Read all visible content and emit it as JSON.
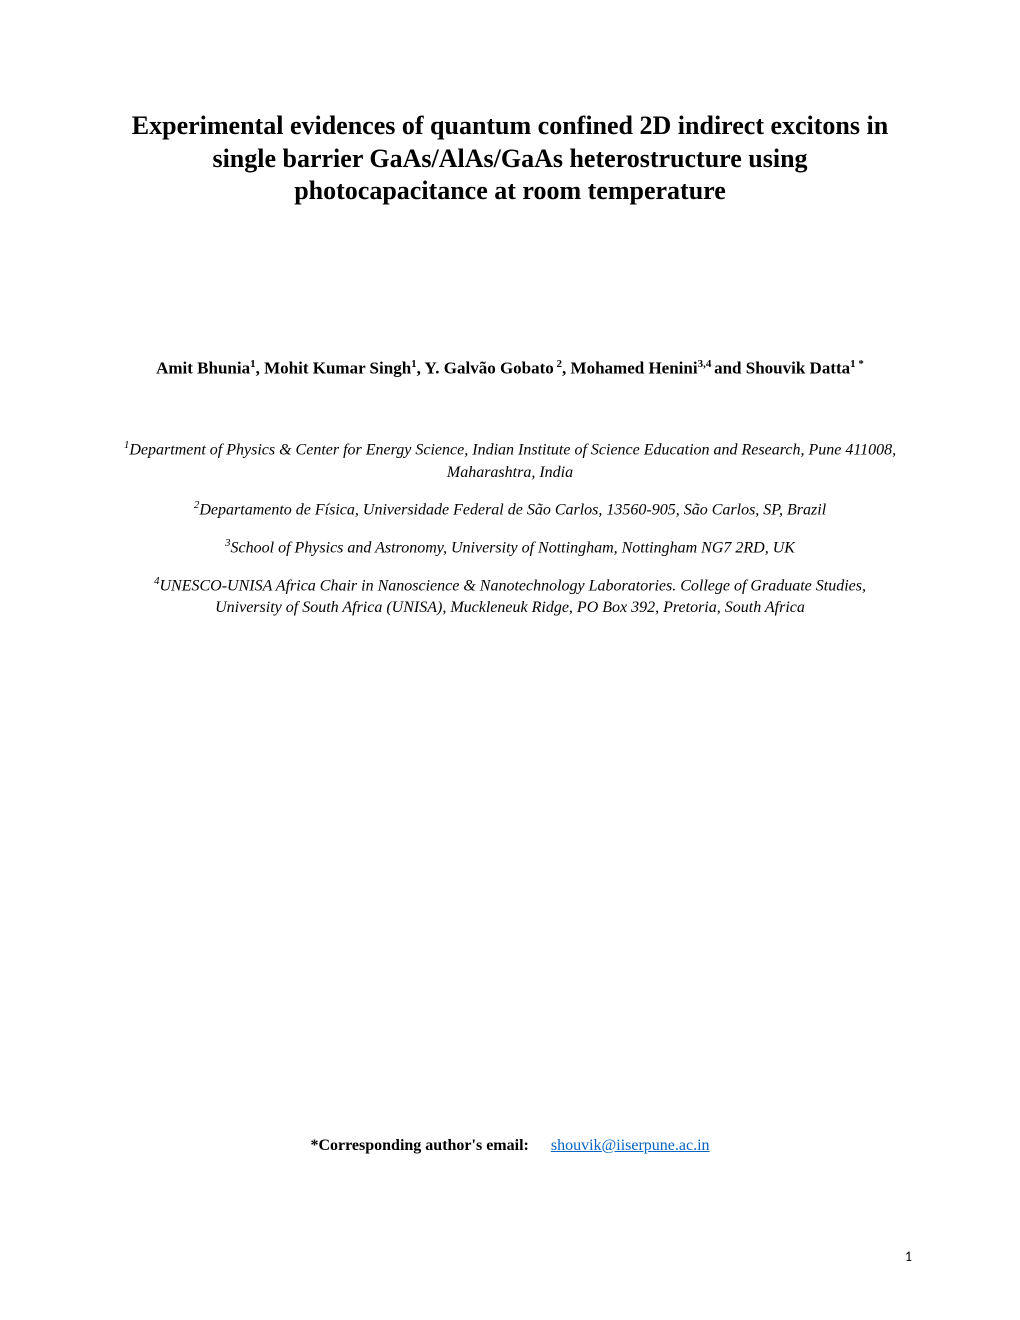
{
  "title": "Experimental evidences of quantum confined 2D indirect excitons in single barrier GaAs/AlAs/GaAs heterostructure using photocapacitance at room temperature",
  "authors": {
    "a1_name": "Amit Bhunia",
    "a1_sup": "1",
    "a2_name": ", Mohit Kumar Singh",
    "a2_sup": "1",
    "a3_name": ", Y. Galvão Gobato",
    "a3_sup": " 2",
    "a4_name": ", Mohamed Henini",
    "a4_sup": "3,4 ",
    "a5_pre": "and ",
    "a5_name": "Shouvik Datta",
    "a5_sup": "1 *"
  },
  "affiliations": {
    "aff1_sup": "1",
    "aff1_text": "Department of Physics & Center for Energy Science, Indian Institute of Science Education and Research, Pune 411008, Maharashtra, India",
    "aff2_sup": "2",
    "aff2_text": "Departamento de Física, Universidade Federal de São Carlos, 13560-905, São Carlos, SP, Brazil",
    "aff3_sup": "3",
    "aff3_text": "School of Physics and Astronomy, University of Nottingham, Nottingham NG7 2RD, UK",
    "aff4_sup": "4",
    "aff4_text": "UNESCO-UNISA Africa Chair in Nanoscience & Nanotechnology Laboratories. College of Graduate Studies, University of South Africa (UNISA), Muckleneuk Ridge, PO Box 392, Pretoria, South Africa"
  },
  "corresponding": {
    "label": "*Corresponding author's email:",
    "email": "shouvik@iiserpune.ac.in"
  },
  "page_number": "1",
  "colors": {
    "background": "#ffffff",
    "text": "#000000",
    "link": "#0563c1"
  },
  "typography": {
    "title_fontsize": 26,
    "title_weight": "bold",
    "authors_fontsize": 17,
    "authors_weight": "bold",
    "affiliation_fontsize": 16,
    "affiliation_style": "italic",
    "corresponding_fontsize": 16,
    "pagenum_fontsize": 14,
    "font_family": "Times New Roman"
  }
}
